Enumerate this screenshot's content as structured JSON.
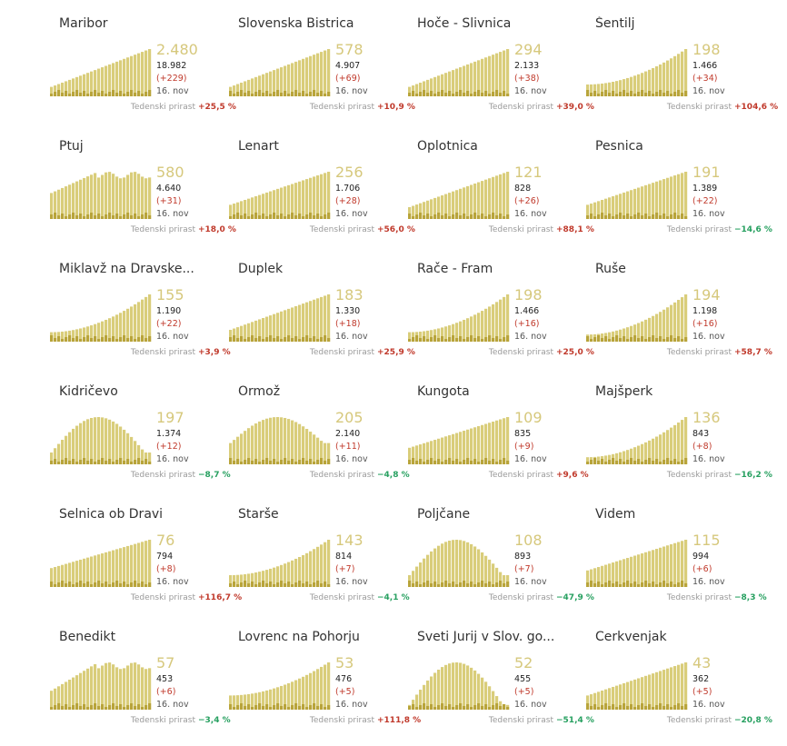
{
  "colors": {
    "bar_light": "#d9cd7a",
    "bar_dark": "#b8a43a",
    "big_number": "#d6c87c",
    "growth_up": "#c0392b",
    "growth_down": "#27a060"
  },
  "growth_label": "Tedenski prirast",
  "municipalities": [
    {
      "name": "Maribor",
      "big": "2.480",
      "total": "18.982",
      "delta": "(+229)",
      "date": "16. nov",
      "growth": "+25,5 %",
      "dir": "up",
      "shape": "ramp",
      "level": 0.2
    },
    {
      "name": "Slovenska Bistrica",
      "big": "578",
      "total": "4.907",
      "delta": "(+69)",
      "date": "16. nov",
      "growth": "+10,9 %",
      "dir": "up",
      "shape": "ramp",
      "level": 0.2
    },
    {
      "name": "Hoče - Slivnica",
      "big": "294",
      "total": "2.133",
      "delta": "(+38)",
      "date": "16. nov",
      "growth": "+39,0 %",
      "dir": "up",
      "shape": "ramp",
      "level": 0.2
    },
    {
      "name": "Šentilj",
      "big": "198",
      "total": "1.466",
      "delta": "(+34)",
      "date": "16. nov",
      "growth": "+104,6 %",
      "dir": "up",
      "shape": "late",
      "level": 0.25
    },
    {
      "name": "Ptuj",
      "big": "580",
      "total": "4.640",
      "delta": "(+31)",
      "date": "16. nov",
      "growth": "+18,0 %",
      "dir": "up",
      "shape": "plateau",
      "level": 0.55
    },
    {
      "name": "Lenart",
      "big": "256",
      "total": "1.706",
      "delta": "(+28)",
      "date": "16. nov",
      "growth": "+56,0 %",
      "dir": "up",
      "shape": "ramp",
      "level": 0.3
    },
    {
      "name": "Oplotnica",
      "big": "121",
      "total": "828",
      "delta": "(+26)",
      "date": "16. nov",
      "growth": "+88,1 %",
      "dir": "up",
      "shape": "ramp",
      "level": 0.25
    },
    {
      "name": "Pesnica",
      "big": "191",
      "total": "1.389",
      "delta": "(+22)",
      "date": "16. nov",
      "growth": "−14,6 %",
      "dir": "down",
      "shape": "ramp",
      "level": 0.3
    },
    {
      "name": "Miklavž na Dravske...",
      "big": "155",
      "total": "1.190",
      "delta": "(+22)",
      "date": "16. nov",
      "growth": "+3,9 %",
      "dir": "up",
      "shape": "late",
      "level": 0.2
    },
    {
      "name": "Duplek",
      "big": "183",
      "total": "1.330",
      "delta": "(+18)",
      "date": "16. nov",
      "growth": "+25,9 %",
      "dir": "up",
      "shape": "ramp",
      "level": 0.25
    },
    {
      "name": "Rače - Fram",
      "big": "198",
      "total": "1.466",
      "delta": "(+16)",
      "date": "16. nov",
      "growth": "+25,0 %",
      "dir": "up",
      "shape": "late",
      "level": 0.2
    },
    {
      "name": "Ruše",
      "big": "194",
      "total": "1.198",
      "delta": "(+16)",
      "date": "16. nov",
      "growth": "+58,7 %",
      "dir": "up",
      "shape": "late",
      "level": 0.15
    },
    {
      "name": "Kidričevo",
      "big": "197",
      "total": "1.374",
      "delta": "(+12)",
      "date": "16. nov",
      "growth": "−8,7 %",
      "dir": "down",
      "shape": "hump",
      "level": 0.25
    },
    {
      "name": "Ormož",
      "big": "205",
      "total": "2.140",
      "delta": "(+11)",
      "date": "16. nov",
      "growth": "−4,8 %",
      "dir": "down",
      "shape": "hump",
      "level": 0.45
    },
    {
      "name": "Kungota",
      "big": "109",
      "total": "835",
      "delta": "(+9)",
      "date": "16. nov",
      "growth": "+9,6 %",
      "dir": "up",
      "shape": "ramp",
      "level": 0.35
    },
    {
      "name": "Majšperk",
      "big": "136",
      "total": "843",
      "delta": "(+8)",
      "date": "16. nov",
      "growth": "−16,2 %",
      "dir": "down",
      "shape": "late",
      "level": 0.15
    },
    {
      "name": "Selnica ob Dravi",
      "big": "76",
      "total": "794",
      "delta": "(+8)",
      "date": "16. nov",
      "growth": "+116,7 %",
      "dir": "up",
      "shape": "ramp",
      "level": 0.4
    },
    {
      "name": "Starše",
      "big": "143",
      "total": "814",
      "delta": "(+7)",
      "date": "16. nov",
      "growth": "−4,1 %",
      "dir": "down",
      "shape": "late",
      "level": 0.25
    },
    {
      "name": "Poljčane",
      "big": "108",
      "total": "893",
      "delta": "(+7)",
      "date": "16. nov",
      "growth": "−47,9 %",
      "dir": "down",
      "shape": "hump",
      "level": 0.25
    },
    {
      "name": "Videm",
      "big": "115",
      "total": "994",
      "delta": "(+6)",
      "date": "16. nov",
      "growth": "−8,3 %",
      "dir": "down",
      "shape": "ramp",
      "level": 0.35
    },
    {
      "name": "Benedikt",
      "big": "57",
      "total": "453",
      "delta": "(+6)",
      "date": "16. nov",
      "growth": "−3,4 %",
      "dir": "down",
      "shape": "plateau",
      "level": 0.4
    },
    {
      "name": "Lovrenc na Pohorju",
      "big": "53",
      "total": "476",
      "delta": "(+5)",
      "date": "16. nov",
      "growth": "+111,8 %",
      "dir": "up",
      "shape": "late",
      "level": 0.3
    },
    {
      "name": "Sveti Jurij v Slov. go...",
      "big": "52",
      "total": "455",
      "delta": "(+5)",
      "date": "16. nov",
      "growth": "−51,4 %",
      "dir": "down",
      "shape": "hump",
      "level": 0.1
    },
    {
      "name": "Cerkvenjak",
      "big": "43",
      "total": "362",
      "delta": "(+5)",
      "date": "16. nov",
      "growth": "−20,8 %",
      "dir": "down",
      "shape": "ramp",
      "level": 0.3
    }
  ]
}
